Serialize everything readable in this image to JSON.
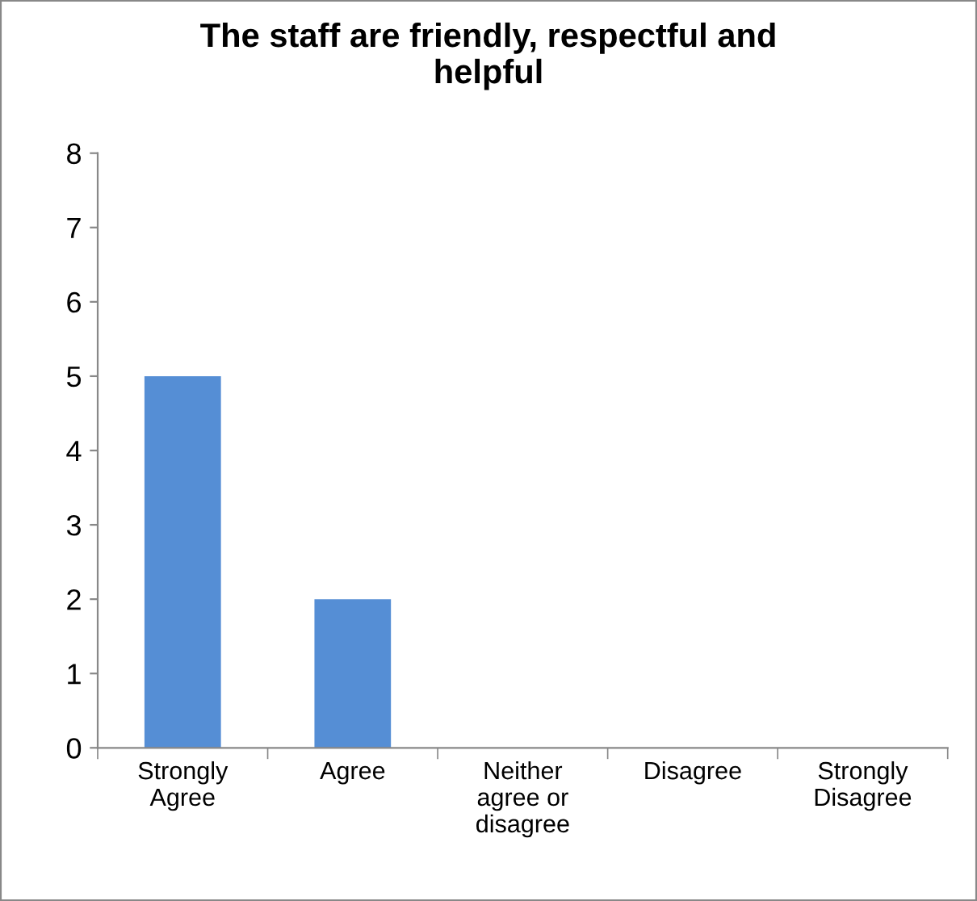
{
  "chart_data": {
    "type": "bar",
    "title": "The staff are friendly, respectful and\nhelpful",
    "categories": [
      "Strongly\nAgree",
      "Agree",
      "Neither\nagree or\ndisagree",
      "Disagree",
      "Strongly\nDisagree"
    ],
    "values": [
      5,
      2,
      0,
      0,
      0
    ],
    "color": "#558ed5",
    "ylim": [
      0,
      8
    ],
    "yticks": [
      0,
      1,
      2,
      3,
      4,
      5,
      6,
      7,
      8
    ],
    "grid": false,
    "legend": false
  }
}
